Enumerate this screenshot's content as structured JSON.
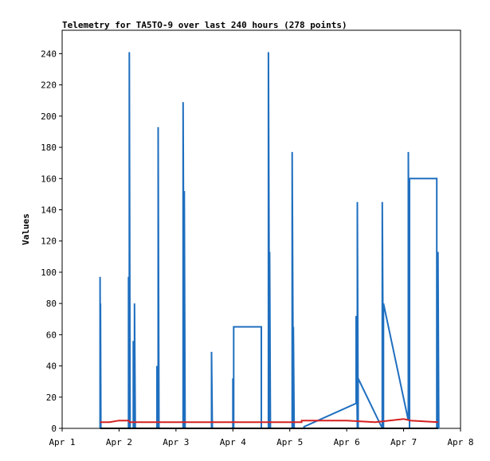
{
  "chart_data": {
    "type": "line",
    "title": "Telemetry for TA5TO-9 over last 240 hours (278 points)",
    "xlabel": "",
    "ylabel": "Values",
    "x_range": [
      "2024-04-01T00:00",
      "2024-04-08T00:00"
    ],
    "x_tick_labels": [
      "Apr 1",
      "Apr 2",
      "Apr 3",
      "Apr 4",
      "Apr 5",
      "Apr 6",
      "Apr 7",
      "Apr 8"
    ],
    "ylim": [
      0,
      255
    ],
    "y_ticks": [
      0,
      20,
      40,
      60,
      80,
      100,
      120,
      140,
      160,
      180,
      200,
      220,
      240
    ],
    "grid": false,
    "legend": "none",
    "series": [
      {
        "color": "#1f6fbf",
        "points": [
          [
            "2024-04-01T16:00",
            0
          ],
          [
            "2024-04-01T16:00",
            97
          ],
          [
            "2024-04-01T16:10",
            0
          ],
          [
            "2024-04-01T16:10",
            80
          ],
          [
            "2024-04-01T16:20",
            0
          ],
          [
            "2024-04-02T04:00",
            0
          ],
          [
            "2024-04-02T04:00",
            97
          ],
          [
            "2024-04-02T04:20",
            0
          ],
          [
            "2024-04-02T04:20",
            241
          ],
          [
            "2024-04-02T04:40",
            0
          ],
          [
            "2024-04-02T06:00",
            0
          ],
          [
            "2024-04-02T06:00",
            56
          ],
          [
            "2024-04-02T06:30",
            0
          ],
          [
            "2024-04-02T06:30",
            80
          ],
          [
            "2024-04-02T06:50",
            0
          ],
          [
            "2024-04-02T16:00",
            0
          ],
          [
            "2024-04-02T16:00",
            40
          ],
          [
            "2024-04-02T16:30",
            0
          ],
          [
            "2024-04-02T16:30",
            193
          ],
          [
            "2024-04-02T16:50",
            0
          ],
          [
            "2024-04-03T03:00",
            0
          ],
          [
            "2024-04-03T03:00",
            209
          ],
          [
            "2024-04-03T03:30",
            0
          ],
          [
            "2024-04-03T03:30",
            152
          ],
          [
            "2024-04-03T03:50",
            0
          ],
          [
            "2024-04-03T15:00",
            0
          ],
          [
            "2024-04-03T15:00",
            49
          ],
          [
            "2024-04-03T15:20",
            0
          ],
          [
            "2024-04-04T00:00",
            0
          ],
          [
            "2024-04-04T00:00",
            32
          ],
          [
            "2024-04-04T00:20",
            0
          ],
          [
            "2024-04-04T00:20",
            65
          ],
          [
            "2024-04-04T12:00",
            65
          ],
          [
            "2024-04-04T12:00",
            0
          ],
          [
            "2024-04-04T15:00",
            0
          ],
          [
            "2024-04-04T15:00",
            241
          ],
          [
            "2024-04-04T15:30",
            0
          ],
          [
            "2024-04-04T15:30",
            113
          ],
          [
            "2024-04-04T15:50",
            0
          ],
          [
            "2024-04-05T01:00",
            0
          ],
          [
            "2024-04-05T01:00",
            177
          ],
          [
            "2024-04-05T01:30",
            0
          ],
          [
            "2024-04-05T01:30",
            65
          ],
          [
            "2024-04-05T01:50",
            0
          ],
          [
            "2024-04-05T06:00",
            0
          ],
          [
            "2024-04-05T06:00",
            1
          ],
          [
            "2024-04-06T04:00",
            16
          ],
          [
            "2024-04-06T04:00",
            72
          ],
          [
            "2024-04-06T04:30",
            0
          ],
          [
            "2024-04-06T04:30",
            145
          ],
          [
            "2024-04-06T04:50",
            0
          ],
          [
            "2024-04-06T04:50",
            32
          ],
          [
            "2024-04-06T15:00",
            0
          ],
          [
            "2024-04-06T15:00",
            145
          ],
          [
            "2024-04-06T15:30",
            0
          ],
          [
            "2024-04-06T15:30",
            80
          ],
          [
            "2024-04-07T02:00",
            5
          ],
          [
            "2024-04-07T02:00",
            177
          ],
          [
            "2024-04-07T02:30",
            0
          ],
          [
            "2024-04-07T02:30",
            160
          ],
          [
            "2024-04-07T14:00",
            160
          ],
          [
            "2024-04-07T14:00",
            0
          ],
          [
            "2024-04-07T14:30",
            0
          ],
          [
            "2024-04-07T14:30",
            113
          ],
          [
            "2024-04-07T14:50",
            0
          ]
        ]
      },
      {
        "color": "#d62020",
        "points": [
          [
            "2024-04-01T16:00",
            4
          ],
          [
            "2024-04-01T20:00",
            4
          ],
          [
            "2024-04-02T00:00",
            5
          ],
          [
            "2024-04-02T04:00",
            5
          ],
          [
            "2024-04-02T04:30",
            4
          ],
          [
            "2024-04-02T12:00",
            4
          ],
          [
            "2024-04-03T00:00",
            4
          ],
          [
            "2024-04-04T00:00",
            4
          ],
          [
            "2024-04-05T00:00",
            4
          ],
          [
            "2024-04-05T05:00",
            4
          ],
          [
            "2024-04-05T05:00",
            5
          ],
          [
            "2024-04-06T00:00",
            5
          ],
          [
            "2024-04-06T12:00",
            4
          ],
          [
            "2024-04-06T18:00",
            5
          ],
          [
            "2024-04-07T00:00",
            6
          ],
          [
            "2024-04-07T03:00",
            5
          ],
          [
            "2024-04-07T14:30",
            4
          ]
        ]
      },
      {
        "color": "#000000",
        "points": [
          [
            "2024-04-01T16:00",
            0
          ],
          [
            "2024-04-07T14:30",
            0
          ]
        ]
      }
    ]
  }
}
